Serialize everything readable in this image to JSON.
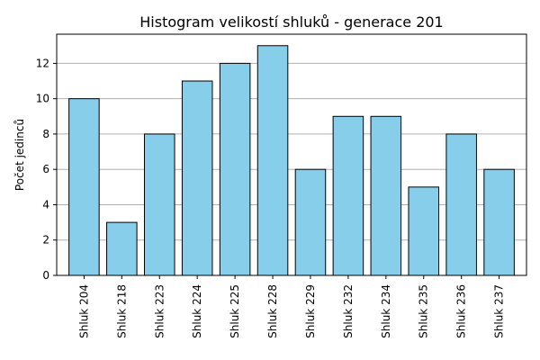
{
  "chart_data": {
    "type": "bar",
    "title": "Histogram velikostí shluků - generace 201",
    "xlabel": "",
    "ylabel": "Počet jedinců",
    "categories": [
      "Shluk 204",
      "Shluk 218",
      "Shluk 223",
      "Shluk 224",
      "Shluk 225",
      "Shluk 228",
      "Shluk 229",
      "Shluk 232",
      "Shluk 234",
      "Shluk 235",
      "Shluk 236",
      "Shluk 237"
    ],
    "values": [
      10,
      3,
      8,
      11,
      12,
      13,
      6,
      9,
      9,
      5,
      8,
      6
    ],
    "ylim": [
      0,
      13.65
    ],
    "yticks": [
      0,
      2,
      4,
      6,
      8,
      10,
      12
    ],
    "grid": "y",
    "bar_color": "#87ceeb",
    "edge_color": "#000000"
  }
}
